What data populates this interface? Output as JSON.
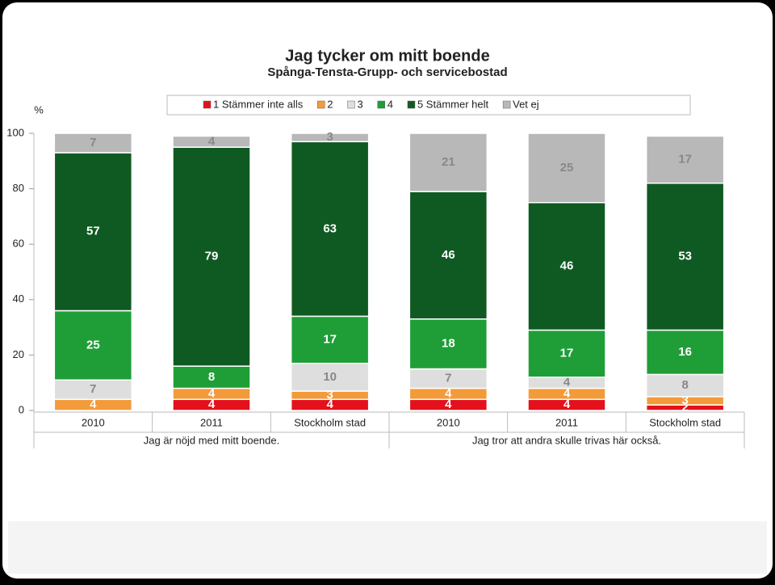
{
  "chart_data": {
    "type": "stacked_bar",
    "title": "Jag tycker om mitt boende",
    "subtitle": "Spånga-Tensta-Grupp- och servicebostad",
    "y_label": "%",
    "categories": [
      "2010",
      "2011",
      "Stockholm stad",
      "2010",
      "2011",
      "Stockholm stad"
    ],
    "group_labels": [
      "Jag är nöjd med mitt boende.",
      "Jag tror att andra skulle trivas här också."
    ],
    "series": [
      {
        "name": "1 Stämmer inte alls",
        "color": "#e3111b",
        "values": [
          null,
          4,
          4,
          4,
          4,
          2
        ]
      },
      {
        "name": "2",
        "color": "#f39a3a",
        "values": [
          4,
          4,
          3,
          4,
          4,
          3
        ]
      },
      {
        "name": "3",
        "color": "#dedede",
        "values": [
          7,
          null,
          10,
          7,
          4,
          8
        ]
      },
      {
        "name": "4",
        "color": "#1f9e38",
        "values": [
          25,
          8,
          17,
          18,
          17,
          16
        ]
      },
      {
        "name": "5 Stämmer helt",
        "color": "#0f5a22",
        "values": [
          57,
          79,
          63,
          46,
          46,
          53
        ]
      },
      {
        "name": "Vet ej",
        "color": "#b8b8b8",
        "values": [
          7,
          4,
          3,
          21,
          25,
          17
        ]
      }
    ],
    "ylim": [
      0,
      100
    ],
    "yticks": [
      0,
      20,
      40,
      60,
      80,
      100
    ],
    "grid": false,
    "legend": "top"
  }
}
